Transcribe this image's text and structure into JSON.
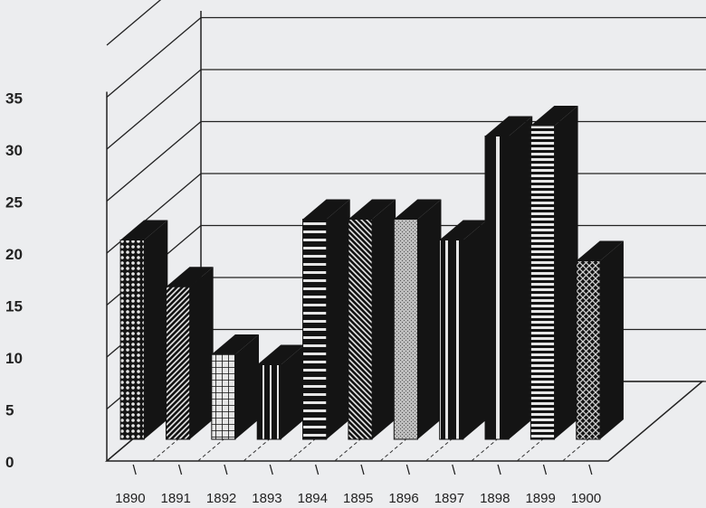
{
  "chart_data": {
    "type": "bar",
    "title": "",
    "xlabel": "",
    "ylabel": "",
    "categories": [
      "1890",
      "1891",
      "1892",
      "1893",
      "1894",
      "1895",
      "1896",
      "1897",
      "1898",
      "1899",
      "1900"
    ],
    "values": [
      23,
      18.5,
      12,
      11,
      25,
      25,
      25,
      23,
      33,
      34,
      21
    ],
    "ylim": [
      0,
      35
    ],
    "y_ticks": [
      "0",
      "5",
      "10",
      "15",
      "20",
      "25",
      "30",
      "35"
    ],
    "grid": true,
    "style": "3d-bars",
    "colors": {
      "background": "#ecedef",
      "bar": "#141414",
      "grid": "#222222"
    }
  }
}
